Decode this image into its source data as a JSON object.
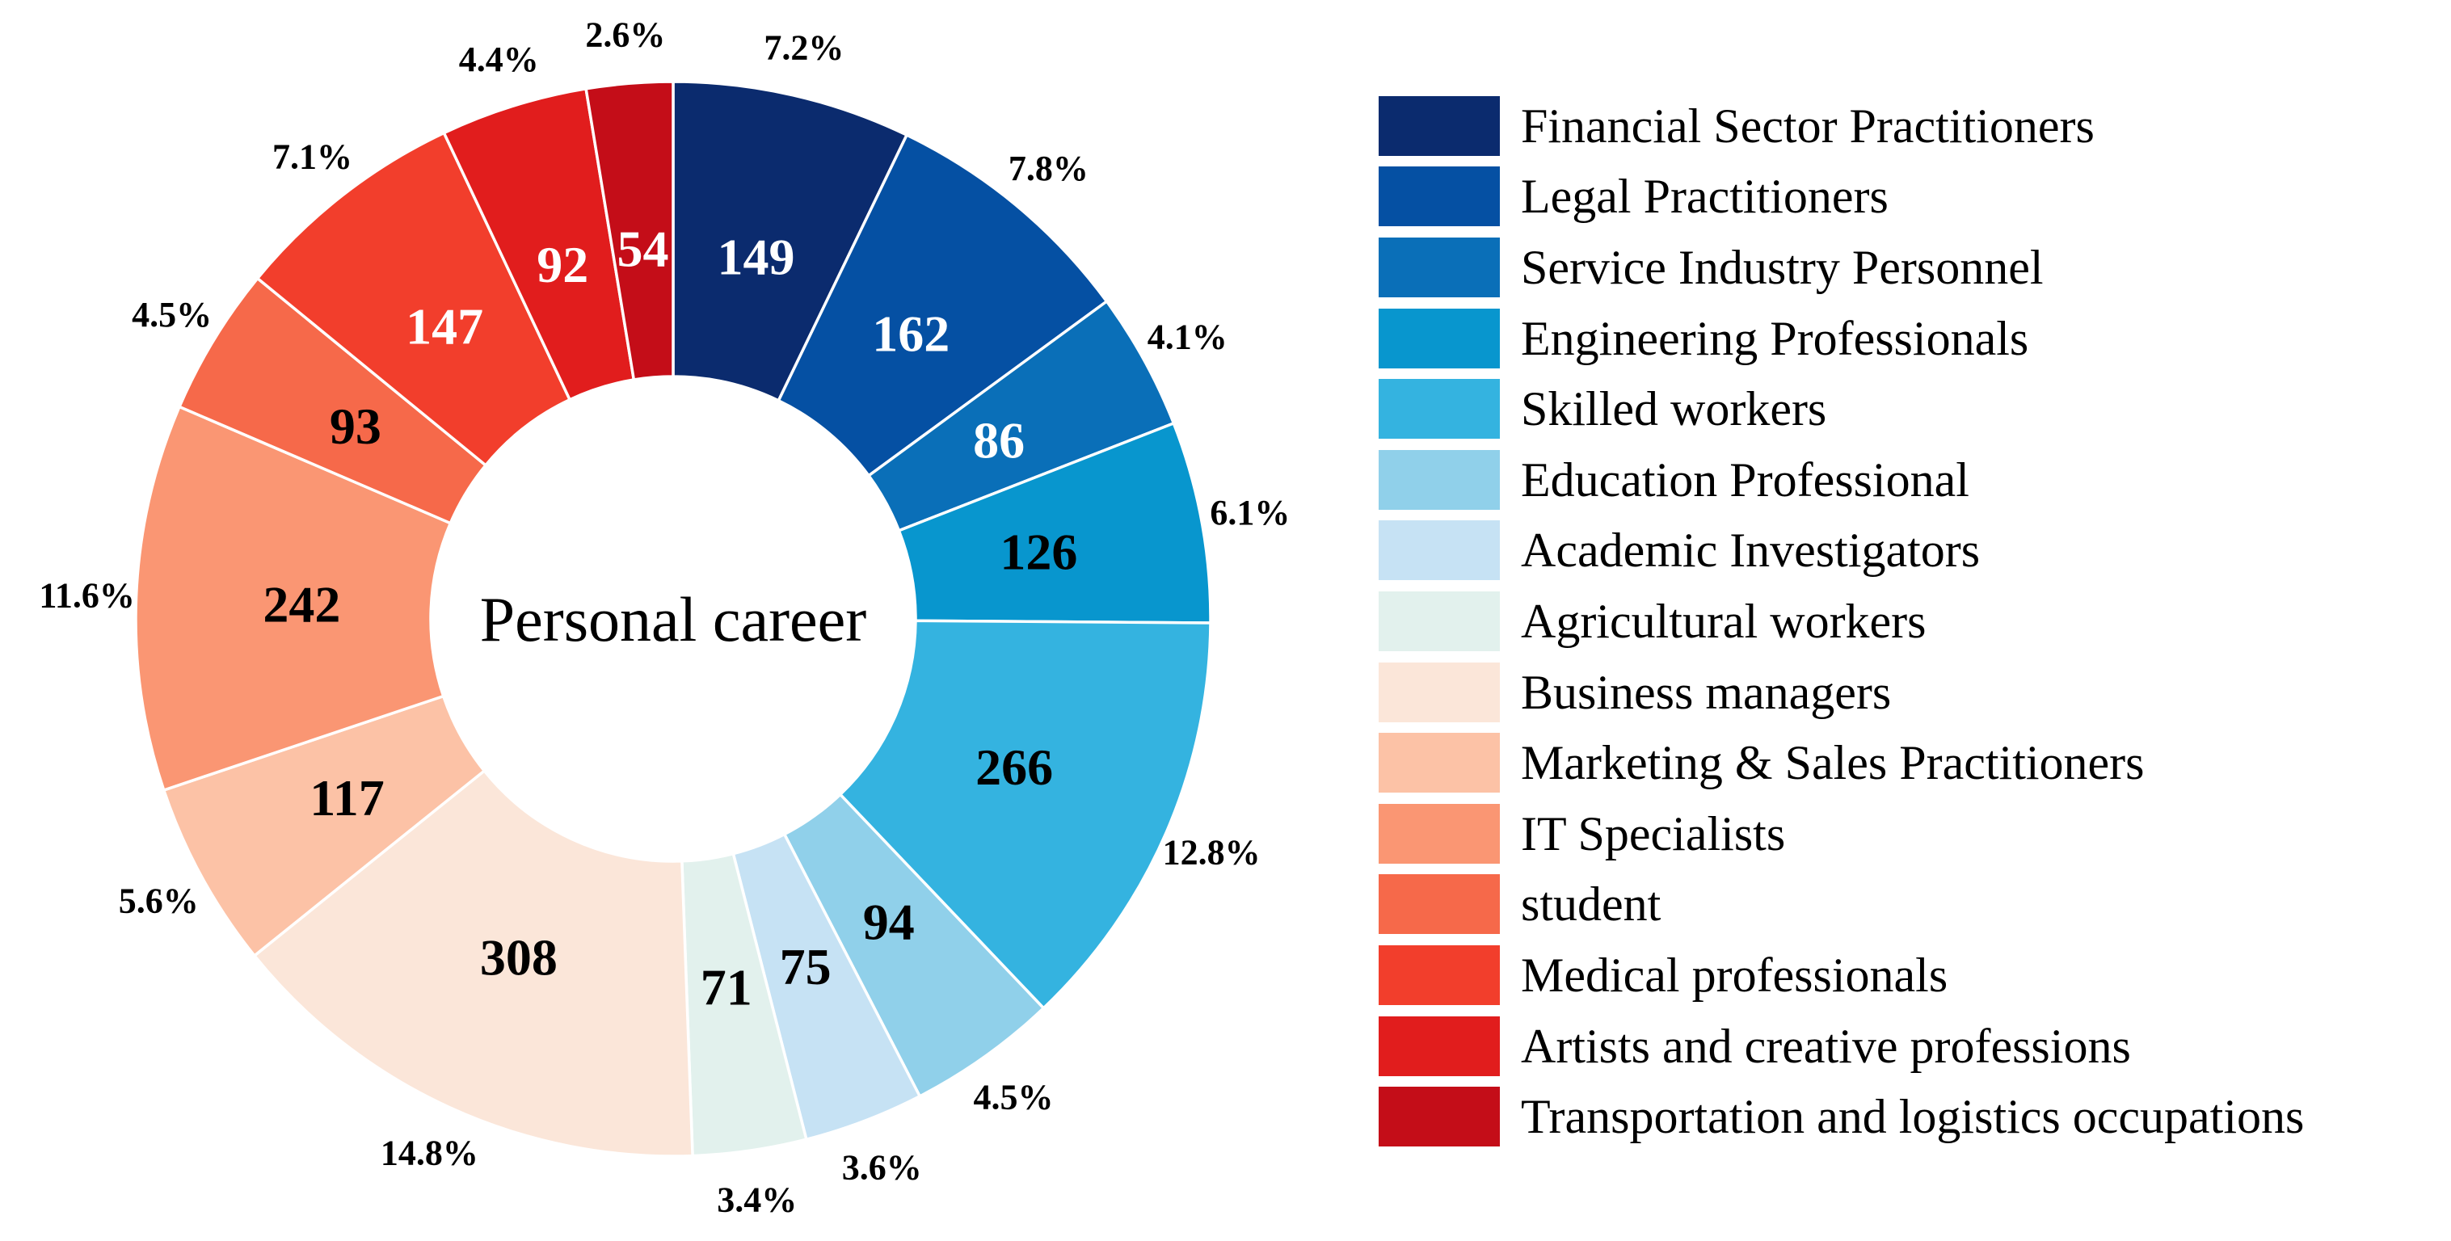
{
  "chart_data": {
    "type": "pie",
    "variant": "donut",
    "center_label": "Personal career",
    "legend_position": "right",
    "categories": [
      {
        "label": "Financial Sector Practitioners",
        "value": 149,
        "percent": "7.2%",
        "color": "#0B2B6E",
        "label_color": "#ffffff"
      },
      {
        "label": "Legal Practitioners",
        "value": 162,
        "percent": "7.8%",
        "color": "#0550A3",
        "label_color": "#ffffff"
      },
      {
        "label": "Service Industry Personnel",
        "value": 86,
        "percent": "4.1%",
        "color": "#0A6FB8",
        "label_color": "#ffffff"
      },
      {
        "label": "Engineering Professionals",
        "value": 126,
        "percent": "6.1%",
        "color": "#0896CE",
        "label_color": "#000000"
      },
      {
        "label": "Skilled workers",
        "value": 266,
        "percent": "12.8%",
        "color": "#34B3E0",
        "label_color": "#000000"
      },
      {
        "label": "Education Professional",
        "value": 94,
        "percent": "4.5%",
        "color": "#90D0EA",
        "label_color": "#000000"
      },
      {
        "label": "Academic Investigators",
        "value": 75,
        "percent": "3.6%",
        "color": "#C6E2F4",
        "label_color": "#000000"
      },
      {
        "label": "Agricultural workers",
        "value": 71,
        "percent": "3.4%",
        "color": "#E2F1ED",
        "label_color": "#000000"
      },
      {
        "label": "Business managers",
        "value": 308,
        "percent": "14.8%",
        "color": "#FBE6D9",
        "label_color": "#000000"
      },
      {
        "label": "Marketing & Sales Practitioners",
        "value": 117,
        "percent": "5.6%",
        "color": "#FCC2A6",
        "label_color": "#000000"
      },
      {
        "label": "IT Specialists",
        "value": 242,
        "percent": "11.6%",
        "color": "#FA9673",
        "label_color": "#000000"
      },
      {
        "label": "student",
        "value": 93,
        "percent": "4.5%",
        "color": "#F6694A",
        "label_color": "#000000"
      },
      {
        "label": "Medical professionals",
        "value": 147,
        "percent": "7.1%",
        "color": "#F23E2C",
        "label_color": "#ffffff"
      },
      {
        "label": "Artists and creative professions",
        "value": 92,
        "percent": "4.4%",
        "color": "#E11D1D",
        "label_color": "#ffffff"
      },
      {
        "label": "Transportation and logistics occupations",
        "value": 54,
        "percent": "2.6%",
        "color": "#C40D18",
        "label_color": "#ffffff"
      }
    ]
  }
}
